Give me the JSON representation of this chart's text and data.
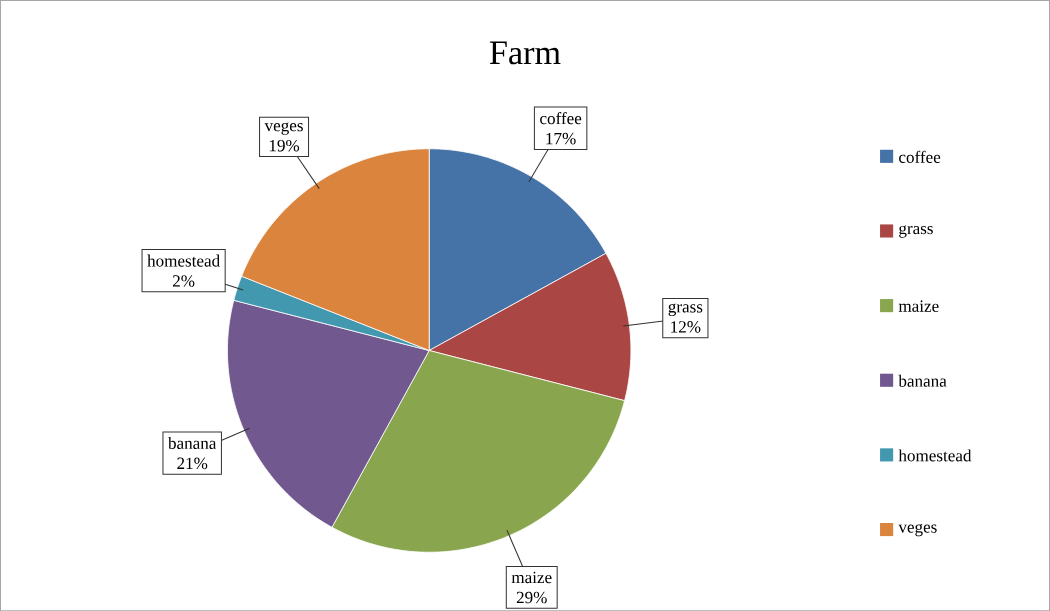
{
  "chart_data": {
    "type": "pie",
    "title": "Farm",
    "categories": [
      "coffee",
      "grass",
      "maize",
      "banana",
      "homestead",
      "veges"
    ],
    "values": [
      17,
      12,
      29,
      21,
      2,
      19
    ],
    "colors": [
      "#4572a7",
      "#aa4643",
      "#89a54e",
      "#71588f",
      "#4198af",
      "#db843d"
    ],
    "value_labels": [
      "17%",
      "12%",
      "29%",
      "21%",
      "2%",
      "19%"
    ],
    "legend": "right"
  }
}
